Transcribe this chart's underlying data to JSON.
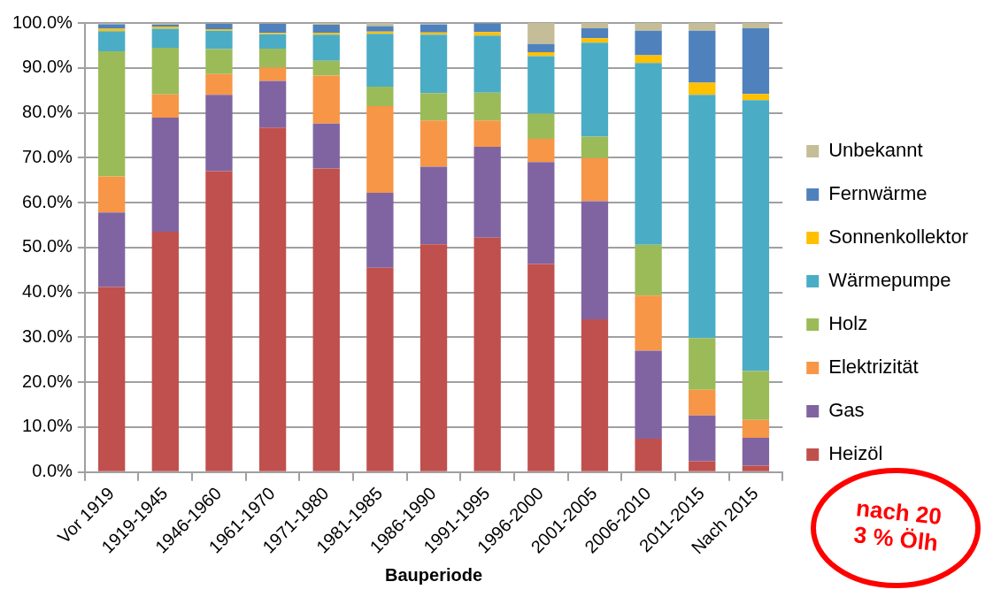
{
  "chart_data": {
    "type": "bar",
    "stacked": true,
    "xlabel": "Bauperiode",
    "categories": [
      "Vor 1919",
      "1919-1945",
      "1946-1960",
      "1961-1970",
      "1971-1980",
      "1981-1985",
      "1986-1990",
      "1991-1995",
      "1996-2000",
      "2001-2005",
      "2006-2010",
      "2011-2015",
      "Nach 2015"
    ],
    "series": [
      {
        "name": "Heizöl",
        "color": "#c0504d",
        "values": [
          41.2,
          53.5,
          67.0,
          76.7,
          67.6,
          45.5,
          50.7,
          52.2,
          46.3,
          34.0,
          7.4,
          2.4,
          1.4
        ]
      },
      {
        "name": "Gas",
        "color": "#8064a2",
        "values": [
          16.6,
          25.4,
          17.0,
          10.4,
          10.0,
          16.7,
          17.3,
          20.2,
          22.7,
          26.3,
          19.6,
          10.2,
          6.2
        ]
      },
      {
        "name": "Elektrizität",
        "color": "#f79646",
        "values": [
          8.0,
          5.2,
          4.6,
          3.0,
          10.7,
          19.3,
          10.3,
          5.9,
          5.2,
          9.6,
          12.3,
          5.7,
          4.0
        ]
      },
      {
        "name": "Holz",
        "color": "#9bbb59",
        "values": [
          27.9,
          10.4,
          5.6,
          4.2,
          3.3,
          4.3,
          6.1,
          6.2,
          5.6,
          4.8,
          11.3,
          11.5,
          10.9
        ]
      },
      {
        "name": "Wärmepumpe",
        "color": "#4bacc6",
        "values": [
          4.5,
          4.2,
          4.1,
          3.2,
          5.8,
          11.8,
          13.0,
          12.7,
          12.8,
          20.9,
          40.5,
          54.2,
          60.3
        ]
      },
      {
        "name": "Sonnenkollektor",
        "color": "#ffc000",
        "values": [
          0.5,
          0.4,
          0.3,
          0.3,
          0.4,
          0.5,
          0.5,
          0.8,
          0.9,
          1.0,
          1.7,
          2.7,
          1.4
        ]
      },
      {
        "name": "Fernwärme",
        "color": "#4f81bd",
        "values": [
          1.0,
          0.5,
          1.2,
          2.0,
          1.8,
          1.2,
          1.8,
          1.9,
          1.8,
          2.2,
          5.5,
          11.6,
          14.6
        ]
      },
      {
        "name": "Unbekannt",
        "color": "#c4bd97",
        "values": [
          0.2,
          0.3,
          null,
          null,
          0.4,
          0.7,
          null,
          null,
          4.7,
          1.2,
          1.7,
          1.7,
          1.2
        ]
      }
    ],
    "ylim": [
      0,
      100
    ],
    "yticks": [
      {
        "value": 0,
        "label": "0.0%"
      },
      {
        "value": 10,
        "label": "10.0%"
      },
      {
        "value": 20,
        "label": "20.0%"
      },
      {
        "value": 30,
        "label": "30.0%"
      },
      {
        "value": 40,
        "label": "40.0%"
      },
      {
        "value": 50,
        "label": "50.0%"
      },
      {
        "value": 60,
        "label": "60.0%"
      },
      {
        "value": 70,
        "label": "70.0%"
      },
      {
        "value": 80,
        "label": "80.0%"
      },
      {
        "value": 90,
        "label": "90.0%"
      },
      {
        "value": 100,
        "label": "100.0%"
      }
    ],
    "grid": "y",
    "legend": "right",
    "annotations": [
      "nach 20",
      "3 % Ölh"
    ]
  }
}
